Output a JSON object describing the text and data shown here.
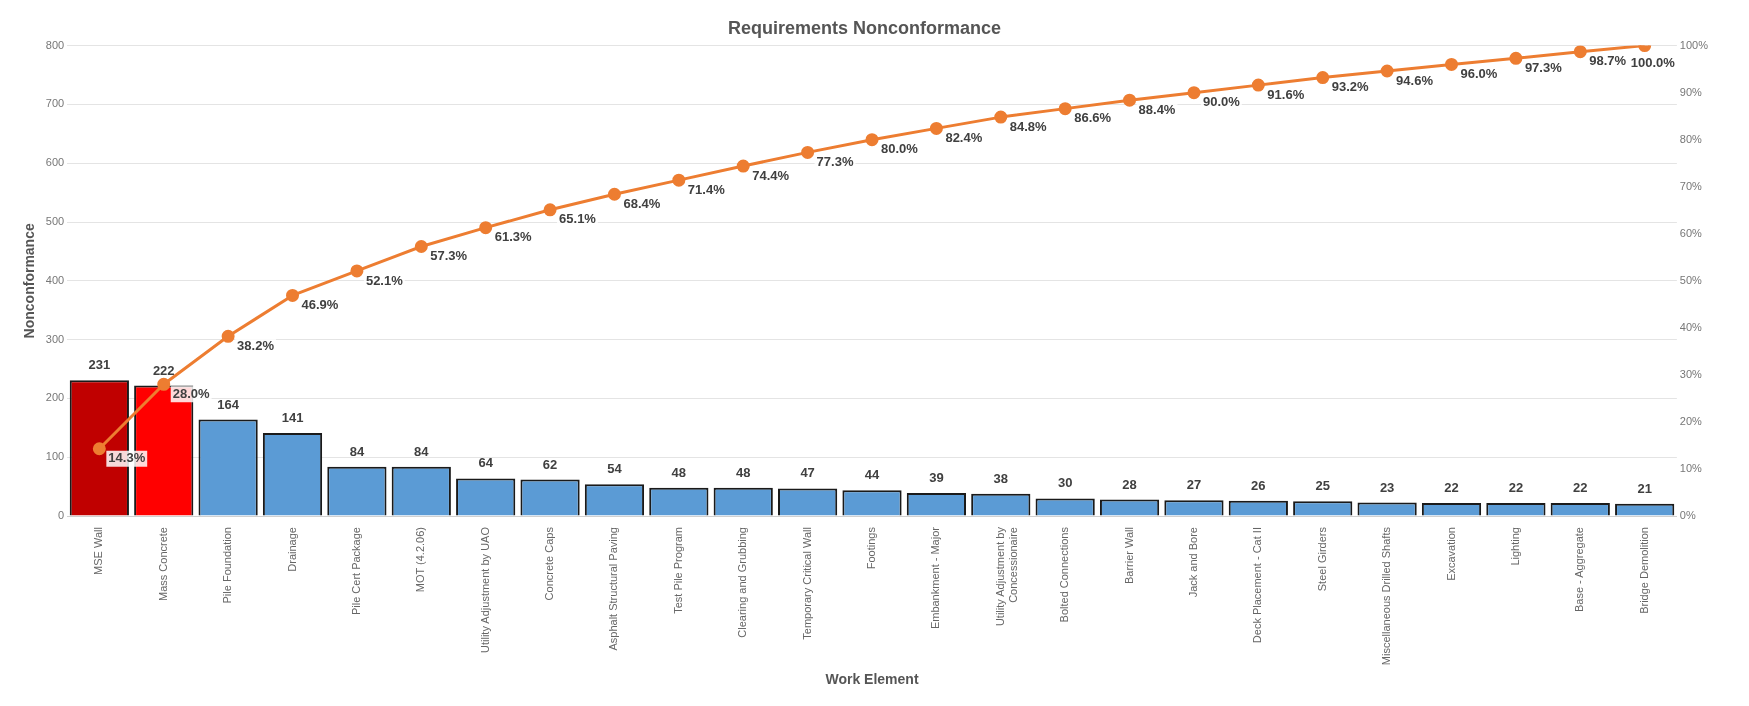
{
  "chart_data": {
    "type": "bar",
    "title": "Requirements Nonconformance",
    "xlabel": "Work Element",
    "ylabel": "Nonconformance",
    "categories": [
      "MSE Wall",
      "Mass Concrete",
      "Pile Foundation",
      "Drainage",
      "Pile Cert Package",
      "MOT (4.2.06)",
      "Utility Adjustment by UAO",
      "Concrete Caps",
      "Asphalt Structural Paving",
      "Test Pile Program",
      "Clearing and Grubbing",
      "Temporary Critical Wall",
      "Footings",
      "Embankment - Major",
      "Utility Adjustment by Concessionaire",
      "Bolted Connections",
      "Barrier Wall",
      "Jack and Bore",
      "Deck Placement - Cat II",
      "Steel Girders",
      "Miscellaneous Drilled Shafts",
      "Excavation",
      "Lighting",
      "Base - Aggregate",
      "Bridge Demolition"
    ],
    "series": [
      {
        "colors": [
          "#c00000",
          "#ff0000",
          "#5b9bd5",
          "#5b9bd5",
          "#5b9bd5",
          "#5b9bd5",
          "#5b9bd5",
          "#5b9bd5",
          "#5b9bd5",
          "#5b9bd5",
          "#5b9bd5",
          "#5b9bd5",
          "#5b9bd5",
          "#5b9bd5",
          "#5b9bd5",
          "#5b9bd5",
          "#5b9bd5",
          "#5b9bd5",
          "#5b9bd5",
          "#5b9bd5",
          "#5b9bd5",
          "#5b9bd5",
          "#5b9bd5",
          "#5b9bd5",
          "#5b9bd5"
        ],
        "values": [
          231,
          222,
          164,
          141,
          84,
          84,
          64,
          62,
          54,
          48,
          48,
          47,
          44,
          39,
          38,
          30,
          28,
          27,
          26,
          25,
          23,
          22,
          22,
          22,
          21
        ],
        "value_labels": [
          "231",
          "222",
          "164",
          "141",
          "84",
          "84",
          "64",
          "62",
          "54",
          "48",
          "48",
          "47",
          "44",
          "39",
          "38",
          "30",
          "28",
          "27",
          "26",
          "25",
          "23",
          "22",
          "22",
          "22",
          "21"
        ]
      },
      {
        "type": "line",
        "axis": "y2",
        "color": "#ed7d31",
        "marker": "circle",
        "values": [
          14.3,
          28.0,
          38.2,
          46.9,
          52.1,
          57.3,
          61.3,
          65.1,
          68.4,
          71.4,
          74.4,
          77.3,
          80.0,
          82.4,
          84.8,
          86.6,
          88.4,
          90.0,
          91.6,
          93.2,
          94.6,
          96.0,
          97.3,
          98.7,
          100.0
        ],
        "value_labels": [
          "14.3%",
          "28.0%",
          "38.2%",
          "46.9%",
          "52.1%",
          "57.3%",
          "61.3%",
          "65.1%",
          "68.4%",
          "71.4%",
          "74.4%",
          "77.3%",
          "80.0%",
          "82.4%",
          "84.8%",
          "86.6%",
          "88.4%",
          "90.0%",
          "91.6%",
          "93.2%",
          "94.6%",
          "96.0%",
          "97.3%",
          "98.7%",
          "100.0%"
        ]
      }
    ],
    "ylim": [
      0,
      800
    ],
    "yticks": [
      0,
      100,
      200,
      300,
      400,
      500,
      600,
      700,
      800
    ],
    "y2lim": [
      0,
      100
    ],
    "y2ticks": [
      {
        "value": 0,
        "label": "0%"
      },
      {
        "value": 10,
        "label": "10%"
      },
      {
        "value": 20,
        "label": "20%"
      },
      {
        "value": 30,
        "label": "30%"
      },
      {
        "value": 40,
        "label": "40%"
      },
      {
        "value": 50,
        "label": "50%"
      },
      {
        "value": 60,
        "label": "60%"
      },
      {
        "value": 70,
        "label": "70%"
      },
      {
        "value": 80,
        "label": "80%"
      },
      {
        "value": 90,
        "label": "90%"
      },
      {
        "value": 100,
        "label": "100%"
      }
    ],
    "grid": "y",
    "legend": false
  }
}
